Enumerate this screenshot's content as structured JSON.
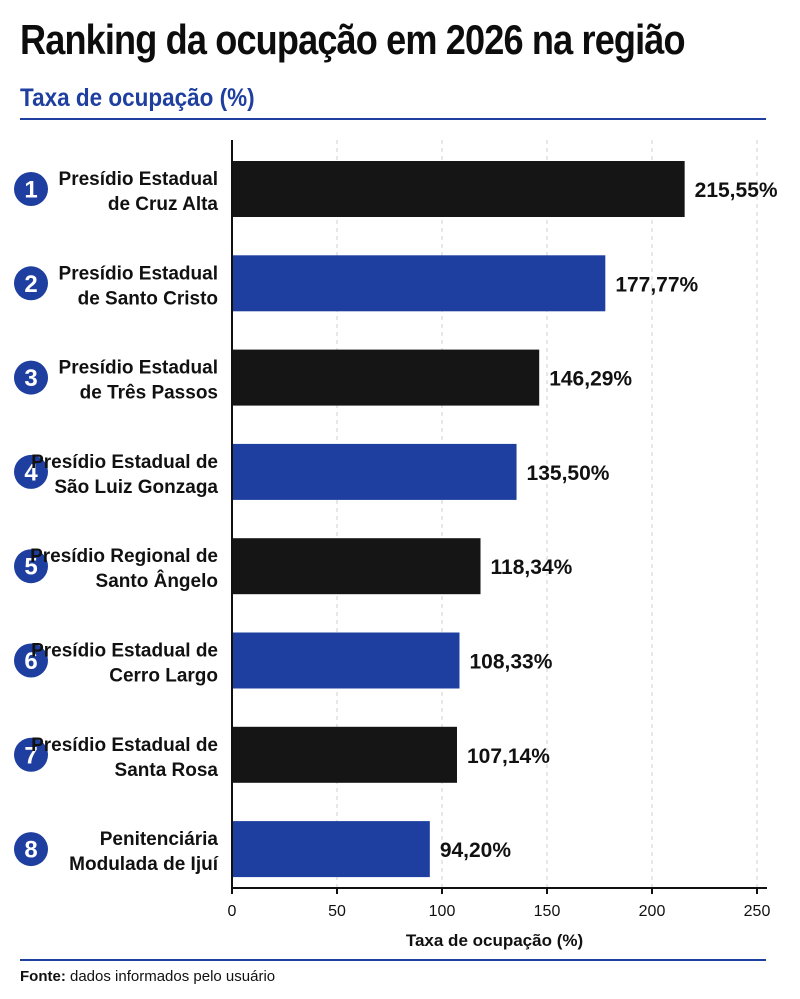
{
  "title": "Ranking da ocupação em 2026 na região",
  "subtitle": "Taxa de ocupação (%)",
  "source": {
    "label": "Fonte:",
    "text": "dados informados pelo usuário"
  },
  "colors": {
    "accent": "#1f3fa0",
    "dark": "#151515",
    "grid": "#cfcfcf"
  },
  "chart_data": {
    "type": "bar",
    "orientation": "horizontal",
    "categories": [
      "Presídio Estadual de Cruz Alta",
      "Presídio Estadual de Santo Cristo",
      "Presídio Estadual de Três Passos",
      "Presídio Estadual de São Luiz Gonzaga",
      "Presídio Regional de Santo Ângelo",
      "Presídio Estadual de Cerro Largo",
      "Presídio Estadual de Santa Rosa",
      "Penitenciária Modulada de Ijuí"
    ],
    "label_lines": [
      [
        "Presídio Estadual",
        "de Cruz Alta"
      ],
      [
        "Presídio Estadual",
        "de Santo Cristo"
      ],
      [
        "Presídio Estadual",
        "de Três Passos"
      ],
      [
        "Presídio Estadual de",
        "São Luiz Gonzaga"
      ],
      [
        "Presídio Regional de",
        "Santo Ângelo"
      ],
      [
        "Presídio Estadual de",
        "Cerro Largo"
      ],
      [
        "Presídio Estadual de",
        "Santa Rosa"
      ],
      [
        "Penitenciária",
        "Modulada de Ijuí"
      ]
    ],
    "ranks": [
      "1",
      "2",
      "3",
      "4",
      "5",
      "6",
      "7",
      "8"
    ],
    "values": [
      215.55,
      177.77,
      146.29,
      135.5,
      118.34,
      108.33,
      107.14,
      94.2
    ],
    "value_labels": [
      "215,55%",
      "177,77%",
      "146,29%",
      "135,50%",
      "118,34%",
      "108,33%",
      "107,14%",
      "94,20%"
    ],
    "bar_colors": [
      "#151515",
      "#1f3fa0",
      "#151515",
      "#1f3fa0",
      "#151515",
      "#1f3fa0",
      "#151515",
      "#1f3fa0"
    ],
    "xlabel": "Taxa de ocupação (%)",
    "xlim": [
      0,
      250
    ],
    "xticks": [
      0,
      50,
      100,
      150,
      200,
      250
    ],
    "grid": true
  }
}
